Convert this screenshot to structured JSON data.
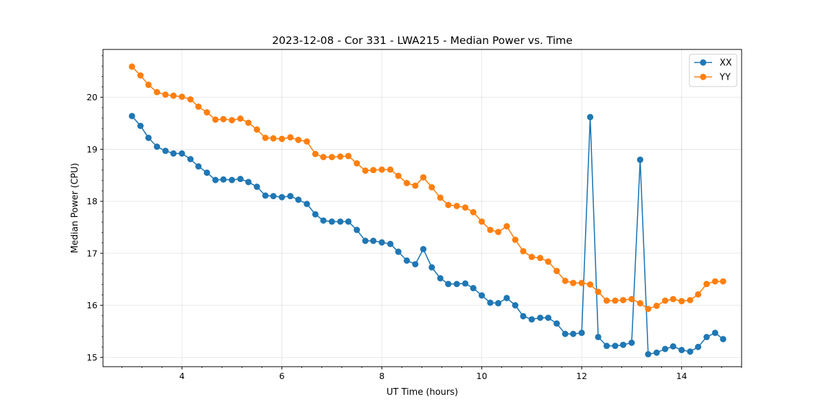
{
  "chart_data": {
    "type": "line",
    "title": "2023-12-08 - Cor 331 - LWA215 - Median Power vs. Time",
    "xlabel": "UT Time (hours)",
    "ylabel": "Median Power (CPU)",
    "xlim": [
      2.42,
      15.2
    ],
    "ylim": [
      14.82,
      20.92
    ],
    "xticks": [
      4,
      6,
      8,
      10,
      12,
      14
    ],
    "yticks": [
      15,
      16,
      17,
      18,
      19,
      20
    ],
    "x_minor_step": 0.4,
    "y_minor_step": 0.2,
    "grid": true,
    "legend_position": "upper-right",
    "x": [
      3.0,
      3.17,
      3.33,
      3.5,
      3.67,
      3.83,
      4.0,
      4.17,
      4.33,
      4.5,
      4.67,
      4.83,
      5.0,
      5.17,
      5.33,
      5.5,
      5.67,
      5.83,
      6.0,
      6.17,
      6.33,
      6.5,
      6.67,
      6.83,
      7.0,
      7.17,
      7.33,
      7.5,
      7.67,
      7.83,
      8.0,
      8.17,
      8.33,
      8.5,
      8.67,
      8.83,
      9.0,
      9.17,
      9.33,
      9.5,
      9.67,
      9.83,
      10.0,
      10.17,
      10.33,
      10.5,
      10.67,
      10.83,
      11.0,
      11.17,
      11.33,
      11.5,
      11.67,
      11.83,
      12.0,
      12.17,
      12.33,
      12.5,
      12.67,
      12.83,
      13.0,
      13.17,
      13.33,
      13.5,
      13.67,
      13.83,
      14.0,
      14.17,
      14.33,
      14.5,
      14.67,
      14.83
    ],
    "series": [
      {
        "name": "XX",
        "color": "#1f77b4",
        "values": [
          19.64,
          19.45,
          19.22,
          19.05,
          18.97,
          18.92,
          18.92,
          18.81,
          18.67,
          18.55,
          18.41,
          18.42,
          18.41,
          18.43,
          18.37,
          18.28,
          18.11,
          18.1,
          18.08,
          18.1,
          18.03,
          17.95,
          17.75,
          17.63,
          17.61,
          17.61,
          17.61,
          17.45,
          17.24,
          17.24,
          17.21,
          17.18,
          17.03,
          16.86,
          16.79,
          17.08,
          16.73,
          16.52,
          16.41,
          16.41,
          16.42,
          16.33,
          16.19,
          16.05,
          16.04,
          16.14,
          16.0,
          15.79,
          15.73,
          15.76,
          15.76,
          15.65,
          15.45,
          15.45,
          15.47,
          19.62,
          15.39,
          15.22,
          15.22,
          15.24,
          15.28,
          18.8,
          15.06,
          15.09,
          15.16,
          15.21,
          15.14,
          15.11,
          15.2,
          15.39,
          15.47,
          15.35
        ]
      },
      {
        "name": "YY",
        "color": "#ff7f0e",
        "values": [
          20.59,
          20.42,
          20.24,
          20.1,
          20.05,
          20.03,
          20.01,
          19.96,
          19.82,
          19.71,
          19.57,
          19.58,
          19.56,
          19.59,
          19.51,
          19.38,
          19.22,
          19.21,
          19.2,
          19.23,
          19.18,
          19.15,
          18.91,
          18.85,
          18.85,
          18.86,
          18.87,
          18.73,
          18.59,
          18.6,
          18.61,
          18.61,
          18.49,
          18.35,
          18.3,
          18.46,
          18.27,
          18.07,
          17.93,
          17.91,
          17.88,
          17.79,
          17.61,
          17.45,
          17.41,
          17.52,
          17.26,
          17.04,
          16.93,
          16.91,
          16.84,
          16.66,
          16.47,
          16.43,
          16.43,
          16.4,
          16.26,
          16.09,
          16.09,
          16.1,
          16.12,
          16.04,
          15.93,
          15.99,
          16.09,
          16.12,
          16.08,
          16.1,
          16.21,
          16.41,
          16.46,
          16.46
        ]
      }
    ]
  }
}
